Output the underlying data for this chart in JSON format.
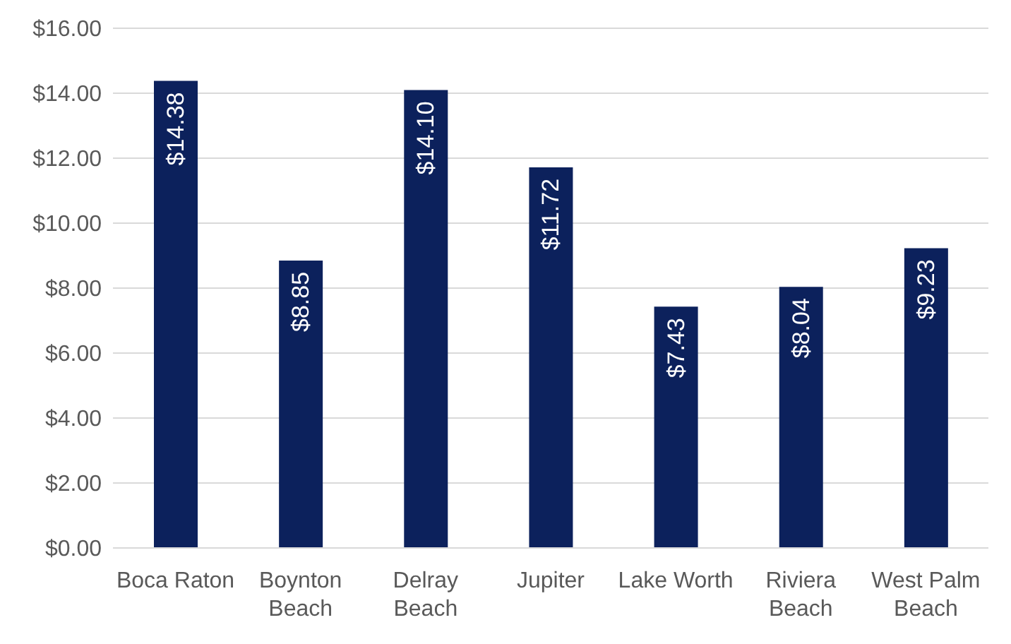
{
  "chart_data": {
    "type": "bar",
    "categories": [
      "Boca Raton",
      "Boynton Beach",
      "Delray Beach",
      "Jupiter",
      "Lake Worth",
      "Riviera Beach",
      "West Palm Beach"
    ],
    "values": [
      14.38,
      8.85,
      14.1,
      11.72,
      7.43,
      8.04,
      9.23
    ],
    "value_labels": [
      "$14.38",
      "$8.85",
      "$14.10",
      "$11.72",
      "$7.43",
      "$8.04",
      "$9.23"
    ],
    "color": "#0c215c",
    "ylim": [
      0,
      16
    ],
    "yticks": [
      {
        "value": 0,
        "label": "$0.00"
      },
      {
        "value": 2,
        "label": "$2.00"
      },
      {
        "value": 4,
        "label": "$4.00"
      },
      {
        "value": 6,
        "label": "$6.00"
      },
      {
        "value": 8,
        "label": "$8.00"
      },
      {
        "value": 10,
        "label": "$10.00"
      },
      {
        "value": 12,
        "label": "$12.00"
      },
      {
        "value": 14,
        "label": "$14.00"
      },
      {
        "value": 16,
        "label": "$16.00"
      }
    ],
    "grid": "y"
  }
}
